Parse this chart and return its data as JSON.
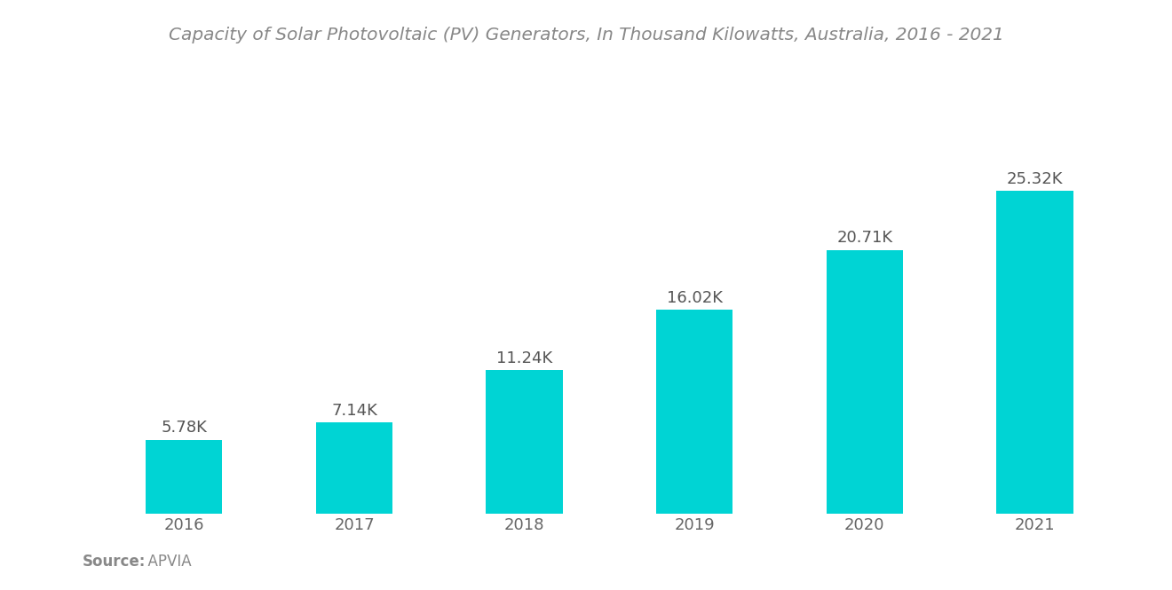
{
  "title": "Capacity of Solar Photovoltaic (PV) Generators, In Thousand Kilowatts, Australia, 2016 - 2021",
  "categories": [
    "2016",
    "2017",
    "2018",
    "2019",
    "2020",
    "2021"
  ],
  "values": [
    5.78,
    7.14,
    11.24,
    16.02,
    20.71,
    25.32
  ],
  "labels": [
    "5.78K",
    "7.14K",
    "11.24K",
    "16.02K",
    "20.71K",
    "25.32K"
  ],
  "bar_color": "#00D4D4",
  "background_color": "#ffffff",
  "title_color": "#888888",
  "label_color": "#555555",
  "tick_color": "#666666",
  "source_bold": "Source:",
  "source_normal": "  APVIA",
  "title_fontsize": 14.5,
  "label_fontsize": 13,
  "tick_fontsize": 13,
  "source_fontsize": 12,
  "ylim": [
    0,
    32
  ]
}
